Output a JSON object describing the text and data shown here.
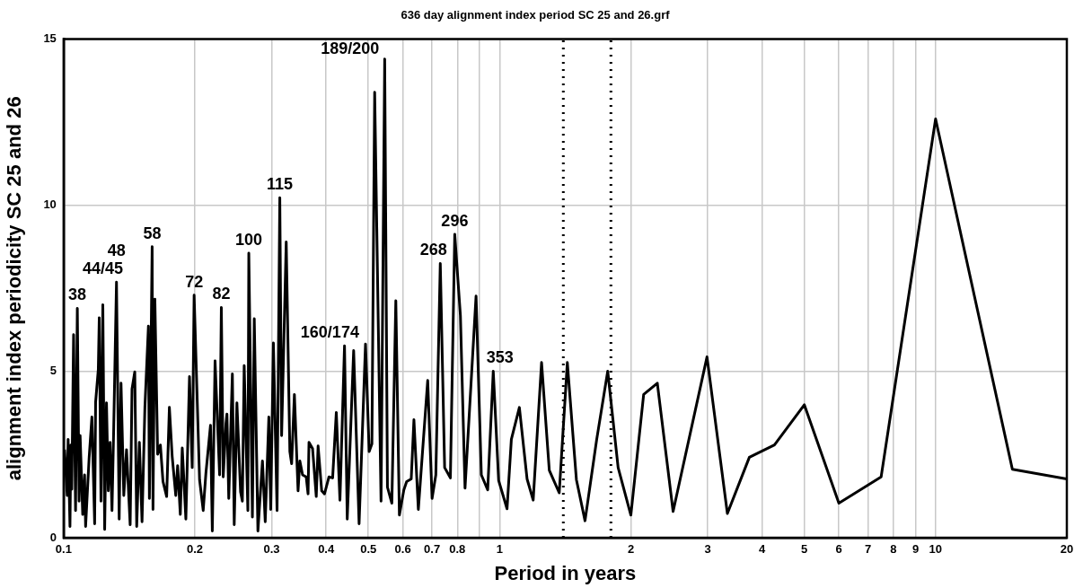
{
  "chart_data": {
    "type": "line",
    "title": "636 day alignment index period SC 25 and 26.grf",
    "xlabel": "Period in years",
    "ylabel": "alignment index periodicity SC 25 and 26",
    "log": "x",
    "grid": true,
    "legend": false,
    "marker": "none",
    "line_style": "solid",
    "xlim": [
      0.1,
      20
    ],
    "xticks": [
      0.1,
      0.2,
      0.3,
      0.4,
      0.5,
      0.6,
      0.7,
      0.8,
      {
        "value": 0.9,
        "label": null
      },
      1,
      2,
      3,
      4,
      5,
      6,
      7,
      8,
      9,
      10,
      20
    ],
    "ylim": [
      0,
      15
    ],
    "yticks": [
      0,
      5,
      10,
      15
    ],
    "ref_lines": [
      {
        "axis": "x",
        "value": 1.4,
        "color": "#000000",
        "line_style": "dotted"
      },
      {
        "axis": "x",
        "value": 1.8,
        "color": "#000000",
        "line_style": "dotted"
      }
    ],
    "annotations": [
      {
        "text": "38",
        "x": 0.1075,
        "y": 6.9
      },
      {
        "text": "44/45",
        "x": 0.123,
        "y": 7.01
      },
      {
        "text": "48",
        "x": 0.1322,
        "y": 7.69
      },
      {
        "text": "58",
        "x": 0.1596,
        "y": 8.76
      },
      {
        "text": "72",
        "x": 0.1992,
        "y": 7.3
      },
      {
        "text": "82",
        "x": 0.23,
        "y": 6.93
      },
      {
        "text": "100",
        "x": 0.2659,
        "y": 8.56
      },
      {
        "text": "115",
        "x": 0.3132,
        "y": 10.23
      },
      {
        "text": "160/174",
        "x": 0.4408,
        "y": 5.77
      },
      {
        "text": "189/200",
        "x": 0.545,
        "y": 14.4
      },
      {
        "text": "268",
        "x": 0.731,
        "y": 8.25
      },
      {
        "text": "296",
        "x": 0.789,
        "y": 9.13
      },
      {
        "text": "353",
        "x": 0.967,
        "y": 5.01
      }
    ],
    "series": [
      {
        "color": "#000000",
        "x": [
          0.1005,
          0.1019,
          0.1024,
          0.1034,
          0.1039,
          0.1044,
          0.1054,
          0.1065,
          0.1075,
          0.1085,
          0.1091,
          0.1106,
          0.1117,
          0.1123,
          0.1144,
          0.1161,
          0.1178,
          0.1184,
          0.1201,
          0.1207,
          0.1218,
          0.123,
          0.1242,
          0.1254,
          0.1266,
          0.1278,
          0.1291,
          0.1303,
          0.1322,
          0.1341,
          0.1354,
          0.1374,
          0.1394,
          0.1421,
          0.1435,
          0.1456,
          0.1471,
          0.1492,
          0.1513,
          0.1536,
          0.1565,
          0.1573,
          0.1596,
          0.1603,
          0.1619,
          0.1643,
          0.1667,
          0.169,
          0.1723,
          0.1748,
          0.1774,
          0.1808,
          0.1826,
          0.1852,
          0.1871,
          0.1907,
          0.1944,
          0.1972,
          0.1992,
          0.2021,
          0.205,
          0.209,
          0.212,
          0.2172,
          0.2193,
          0.2225,
          0.2279,
          0.23,
          0.2323,
          0.2357,
          0.2369,
          0.2392,
          0.2438,
          0.2462,
          0.2497,
          0.2546,
          0.257,
          0.2595,
          0.2646,
          0.2659,
          0.271,
          0.2737,
          0.279,
          0.2858,
          0.29,
          0.2956,
          0.2985,
          0.3028,
          0.3087,
          0.3132,
          0.3162,
          0.324,
          0.3303,
          0.3334,
          0.3383,
          0.3449,
          0.3482,
          0.3532,
          0.3601,
          0.3636,
          0.3654,
          0.3724,
          0.3797,
          0.3834,
          0.3908,
          0.3966,
          0.4061,
          0.414,
          0.4221,
          0.4303,
          0.4408,
          0.4472,
          0.4626,
          0.4761,
          0.4925,
          0.5021,
          0.5094,
          0.5169,
          0.5346,
          0.545,
          0.553,
          0.566,
          0.578,
          0.589,
          0.603,
          0.612,
          0.627,
          0.636,
          0.651,
          0.684,
          0.7,
          0.714,
          0.731,
          0.748,
          0.771,
          0.789,
          0.813,
          0.833,
          0.883,
          0.908,
          0.939,
          0.967,
          0.995,
          1.04,
          1.064,
          1.11,
          1.156,
          1.194,
          1.248,
          1.3,
          1.37,
          1.43,
          1.5,
          1.57,
          1.67,
          1.77,
          1.87,
          2.0,
          2.14,
          2.3,
          2.5,
          2.99,
          3.33,
          3.74,
          4.27,
          5.0,
          6.0,
          7.5,
          10,
          15,
          20
        ],
        "values": [
          2.65,
          1.27,
          2.96,
          0.34,
          2.79,
          1.46,
          6.11,
          0.82,
          6.9,
          1.1,
          3.07,
          0.7,
          1.89,
          0.34,
          2.39,
          3.63,
          0.42,
          4.08,
          5.07,
          6.62,
          1.1,
          7.01,
          0.25,
          4.06,
          1.41,
          2.87,
          0.82,
          3.35,
          7.69,
          0.56,
          4.65,
          1.27,
          2.65,
          0.39,
          4.48,
          4.99,
          0.34,
          2.87,
          0.48,
          3.92,
          6.37,
          1.18,
          8.76,
          0.85,
          7.18,
          2.51,
          2.79,
          1.69,
          1.24,
          3.92,
          2.45,
          1.27,
          2.17,
          0.7,
          2.7,
          0.56,
          4.85,
          2.11,
          7.3,
          4.51,
          1.75,
          0.82,
          1.94,
          3.38,
          0.2,
          5.32,
          1.89,
          6.93,
          1.83,
          3.44,
          3.72,
          1.18,
          4.93,
          0.39,
          4.06,
          1.38,
          1.1,
          5.18,
          0.82,
          8.56,
          0.62,
          6.59,
          0.2,
          2.31,
          0.48,
          3.63,
          0.85,
          5.86,
          0.82,
          10.23,
          3.07,
          8.9,
          2.59,
          2.23,
          4.31,
          1.41,
          2.31,
          1.89,
          1.83,
          1.32,
          2.87,
          2.68,
          1.24,
          2.76,
          1.41,
          1.32,
          1.83,
          1.8,
          3.77,
          1.13,
          5.77,
          0.56,
          5.63,
          0.42,
          5.83,
          2.59,
          2.82,
          13.4,
          1.1,
          14.4,
          1.52,
          1.04,
          7.13,
          0.68,
          1.44,
          1.69,
          1.77,
          3.55,
          0.85,
          4.73,
          1.18,
          1.89,
          8.25,
          2.11,
          1.8,
          9.13,
          6.68,
          1.49,
          7.27,
          1.89,
          1.44,
          5.01,
          1.72,
          0.87,
          2.96,
          3.92,
          1.77,
          1.13,
          5.27,
          2.03,
          1.35,
          5.27,
          1.75,
          0.51,
          2.96,
          5.01,
          2.11,
          0.68,
          4.31,
          4.65,
          0.79,
          5.44,
          0.73,
          2.42,
          2.79,
          4.0,
          1.04,
          1.83,
          12.6,
          2.06,
          1.77
        ]
      }
    ]
  }
}
